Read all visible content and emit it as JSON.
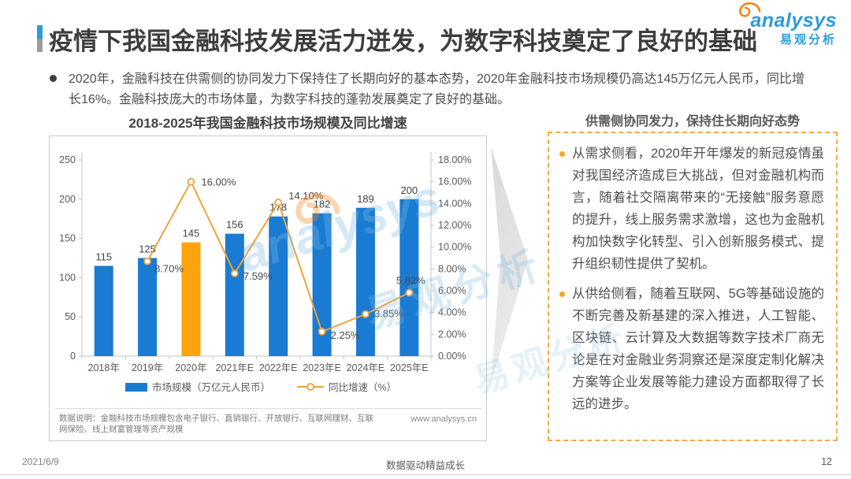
{
  "header": {
    "title": "疫情下我国金融科技发展活力迸发，为数字科技奠定了良好的基础"
  },
  "logo": {
    "brand": "analysys",
    "brand_cn": "易观分析"
  },
  "intro": {
    "text": "2020年，金融科技在供需侧的协同发力下保持住了长期向好的基本态势，2020年金融科技市场规模仍高达145万亿元人民币，同比增长16%。金融科技庞大的市场体量，为数字科技的蓬勃发展奠定了良好的基础。"
  },
  "chart": {
    "title": "2018-2025年我国金融科技市场规模及同比增速",
    "note": "数据说明：金融科技市场规模包含电子银行、直销银行、开放银行、互联网理财、互联网保险、线上财富管理等资产规模",
    "website": "www.analysys.cn"
  },
  "chart_data": {
    "type": "bar+line",
    "title": "2018-2025年我国金融科技市场规模及同比增速",
    "categories": [
      "2018年",
      "2019年",
      "2020年",
      "2021年E",
      "2022年E",
      "2023年E",
      "2024年E",
      "2025年E"
    ],
    "series": [
      {
        "name": "市场规模（万亿元人民币）",
        "type": "bar",
        "values": [
          115,
          125,
          145,
          156,
          178,
          182,
          189,
          200
        ],
        "color": "#1a7bd2",
        "highlight_category": "2020年",
        "highlight_color": "#ffa40d"
      },
      {
        "name": "同比增速（%）",
        "type": "line",
        "values": [
          null,
          8.7,
          16.0,
          7.59,
          14.1,
          2.25,
          3.85,
          5.82
        ],
        "point_labels": [
          null,
          "8.70%",
          "16.00%",
          "7.59%",
          "14.10%",
          "2.25%",
          "3.85%",
          "5.82%"
        ],
        "color": "#f0a23c"
      }
    ],
    "left_axis": {
      "min": 0,
      "max": 250,
      "ticks": [
        0,
        50,
        100,
        150,
        200,
        250
      ]
    },
    "right_axis": {
      "min": 0,
      "max": 18,
      "tick_labels": [
        "0.00%",
        "2.00%",
        "4.00%",
        "6.00%",
        "8.00%",
        "10.00%",
        "12.00%",
        "14.00%",
        "16.00%",
        "18.00%"
      ]
    },
    "legend_position": "bottom",
    "gridlines": false
  },
  "panel": {
    "title": "供需侧协同发力，保持住长期向好态势",
    "bullets": [
      "从需求侧看，2020年开年爆发的新冠疫情虽对我国经济造成巨大挑战，但对金融机构而言，随着社交隔离带来的“无接触”服务意愿的提升，线上服务需求激增，这也为金融机构加快数字化转型、引入创新服务模式、提升组织韧性提供了契机。",
      "从供给侧看，随着互联网、5G等基础设施的不断完善及新基建的深入推进，人工智能、区块链、云计算及大数据等数字技术厂商无论是在对金融业务洞察还是深度定制化解决方案等企业发展等能力建设方面都取得了长远的进步。"
    ]
  },
  "watermark": {
    "en": "analysys",
    "cn": "易观分析"
  },
  "footer": {
    "date": "2021/6/9",
    "center": "数据驱动精益成长",
    "page": "12"
  }
}
